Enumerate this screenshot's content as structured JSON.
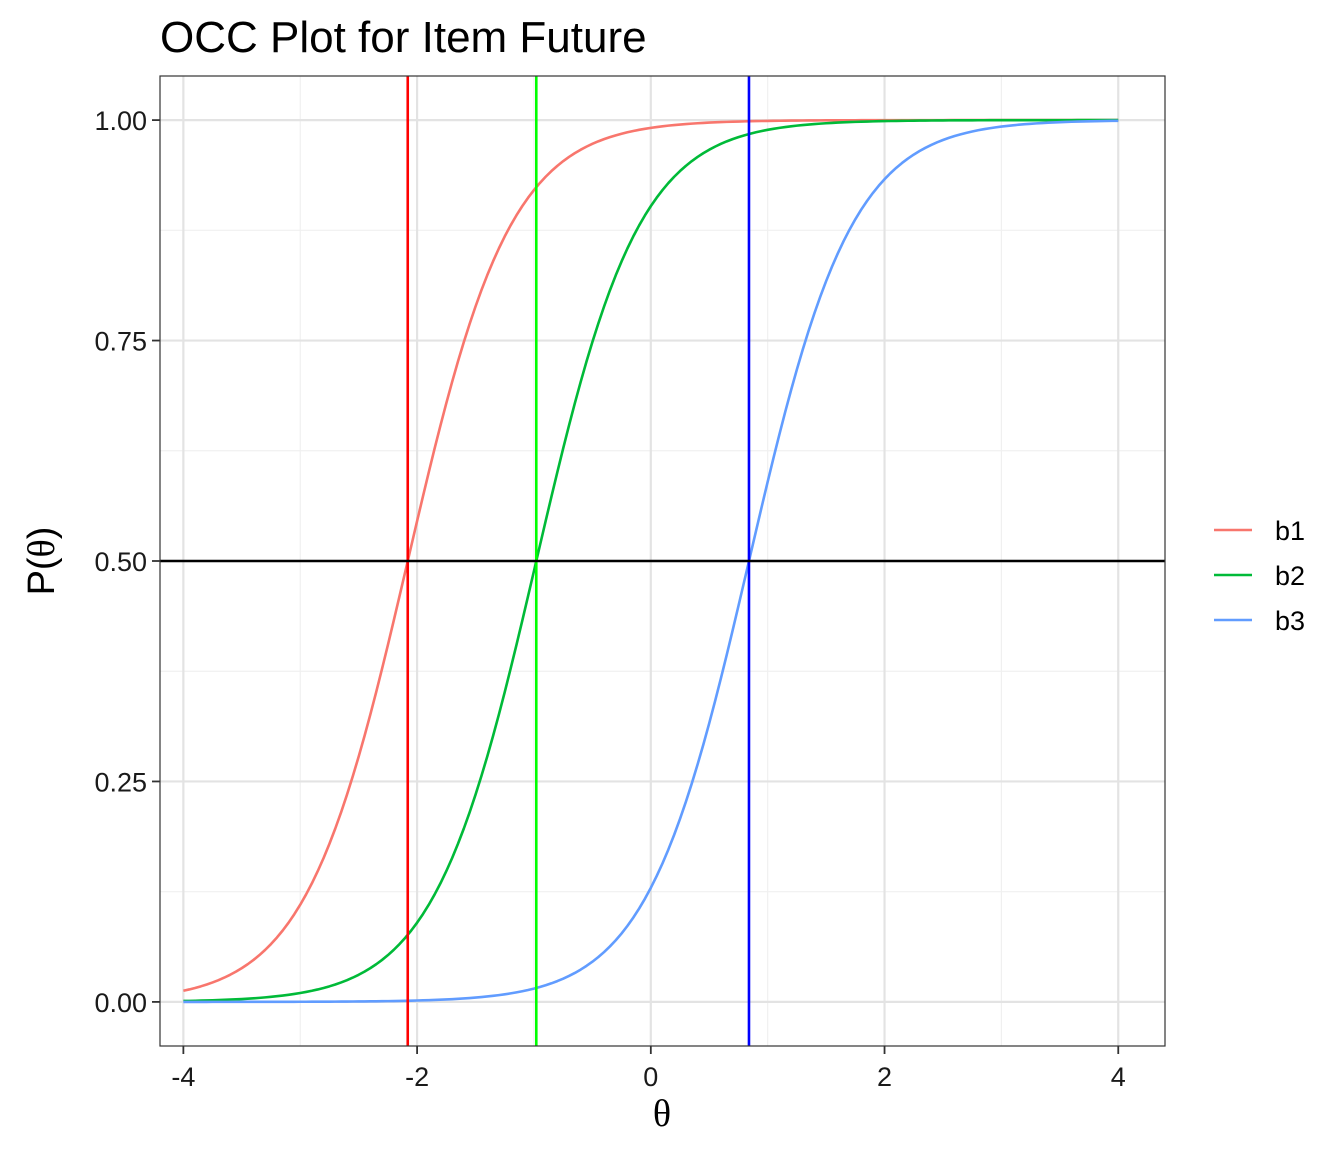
{
  "chart_data": {
    "type": "line",
    "title": "OCC Plot for Item Future",
    "xlabel": "θ",
    "ylabel_prefix": "P(",
    "ylabel_symbol": "θ",
    "ylabel_suffix": ")",
    "xlim": [
      -4.2,
      4.4
    ],
    "ylim": [
      -0.05,
      1.05
    ],
    "x_ticks": [
      -4,
      -2,
      0,
      2,
      4
    ],
    "x_tick_labels": [
      "-4",
      "-2",
      "0",
      "2",
      "4"
    ],
    "y_ticks": [
      0,
      0.25,
      0.5,
      0.75,
      1
    ],
    "y_tick_labels": [
      "0.00",
      "0.25",
      "0.50",
      "0.75",
      "1.00"
    ],
    "x_minor": [
      -3,
      -1,
      1,
      3
    ],
    "y_minor": [
      0.125,
      0.375,
      0.625,
      0.875
    ],
    "grid": true,
    "legend_position": "right",
    "discrimination": 2.27,
    "theta_range": [
      -4,
      4
    ],
    "series": [
      {
        "name": "b1",
        "location": -2.08,
        "color": "#F8766D"
      },
      {
        "name": "b2",
        "location": -0.98,
        "color": "#00BA38"
      },
      {
        "name": "b3",
        "location": 0.84,
        "color": "#619CFF"
      }
    ],
    "vlines": [
      {
        "x": -2.08,
        "color": "#FF0000"
      },
      {
        "x": -0.98,
        "color": "#00FF00"
      },
      {
        "x": 0.84,
        "color": "#0000FF"
      }
    ],
    "hline": {
      "y": 0.5,
      "color": "#000000"
    }
  }
}
